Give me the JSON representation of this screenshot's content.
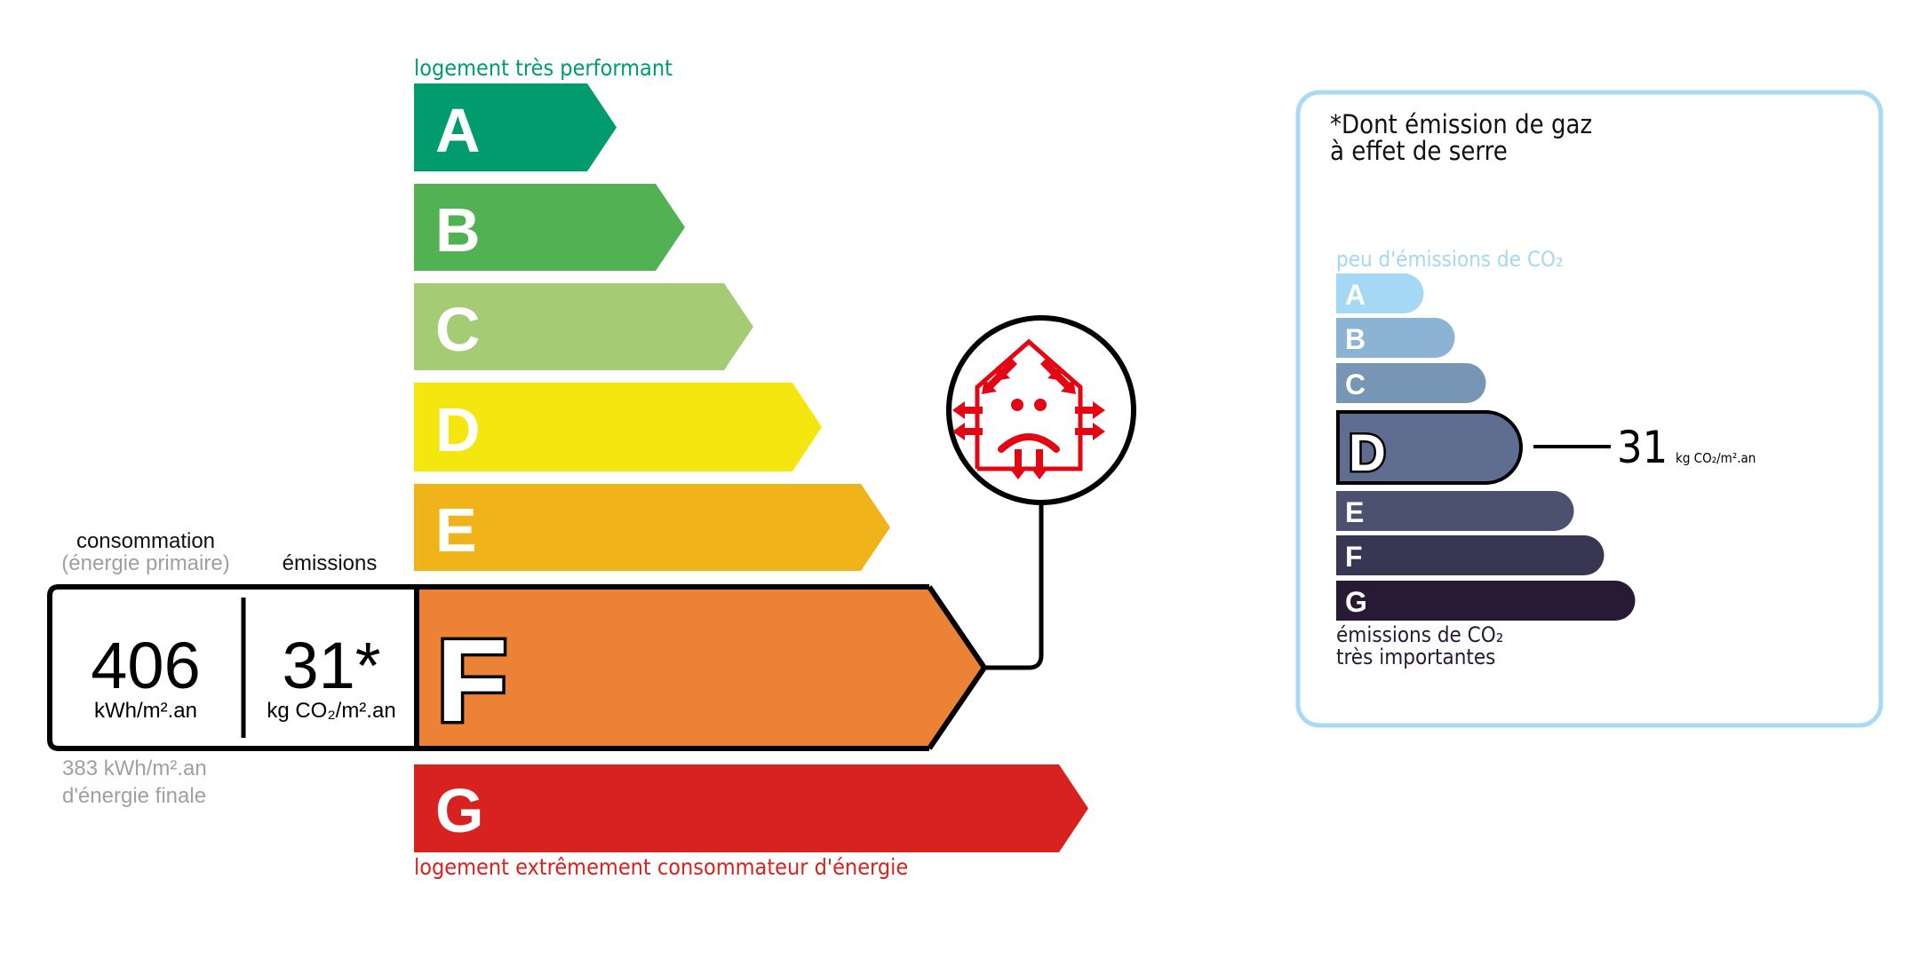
{
  "energy": {
    "top_label": "logement très performant",
    "bottom_label": "logement extrêmement consommateur d'énergie",
    "classes": [
      {
        "letter": "A",
        "color": "#009c6d"
      },
      {
        "letter": "B",
        "color": "#52b153"
      },
      {
        "letter": "C",
        "color": "#a5cc74"
      },
      {
        "letter": "D",
        "color": "#f4e70f"
      },
      {
        "letter": "E",
        "color": "#f0b41a"
      },
      {
        "letter": "F",
        "color": "#eb8235"
      },
      {
        "letter": "G",
        "color": "#d7221f"
      }
    ],
    "current_class": "F",
    "consumption_label": "consommation",
    "consumption_sublabel": "(énergie primaire)",
    "emissions_label": "émissions",
    "consumption_value": "406",
    "consumption_unit": "kWh/m².an",
    "emissions_value": "31*",
    "emissions_unit": "kg CO₂/m².an",
    "final_energy_value": "383 kWh/m².an",
    "final_energy_label": "d'énergie finale",
    "icon": "house-heat-loss-sad-face-icon",
    "icon_color": "#e30613"
  },
  "ges": {
    "title_line1": "*Dont émission de gaz",
    "title_line2": "à effet de serre",
    "top_label": "peu d'émissions de CO₂",
    "bottom_label_line1": "émissions de CO₂",
    "bottom_label_line2": "très importantes",
    "border_color": "#a8daf5",
    "classes": [
      {
        "letter": "A",
        "color": "#a4d8f4"
      },
      {
        "letter": "B",
        "color": "#8db3d4"
      },
      {
        "letter": "C",
        "color": "#7796b5"
      },
      {
        "letter": "D",
        "color": "#5f6e90"
      },
      {
        "letter": "E",
        "color": "#4d5170"
      },
      {
        "letter": "F",
        "color": "#393654"
      },
      {
        "letter": "G",
        "color": "#281a35"
      }
    ],
    "current_class": "D",
    "value": "31",
    "unit": "kg CO₂/m².an"
  }
}
